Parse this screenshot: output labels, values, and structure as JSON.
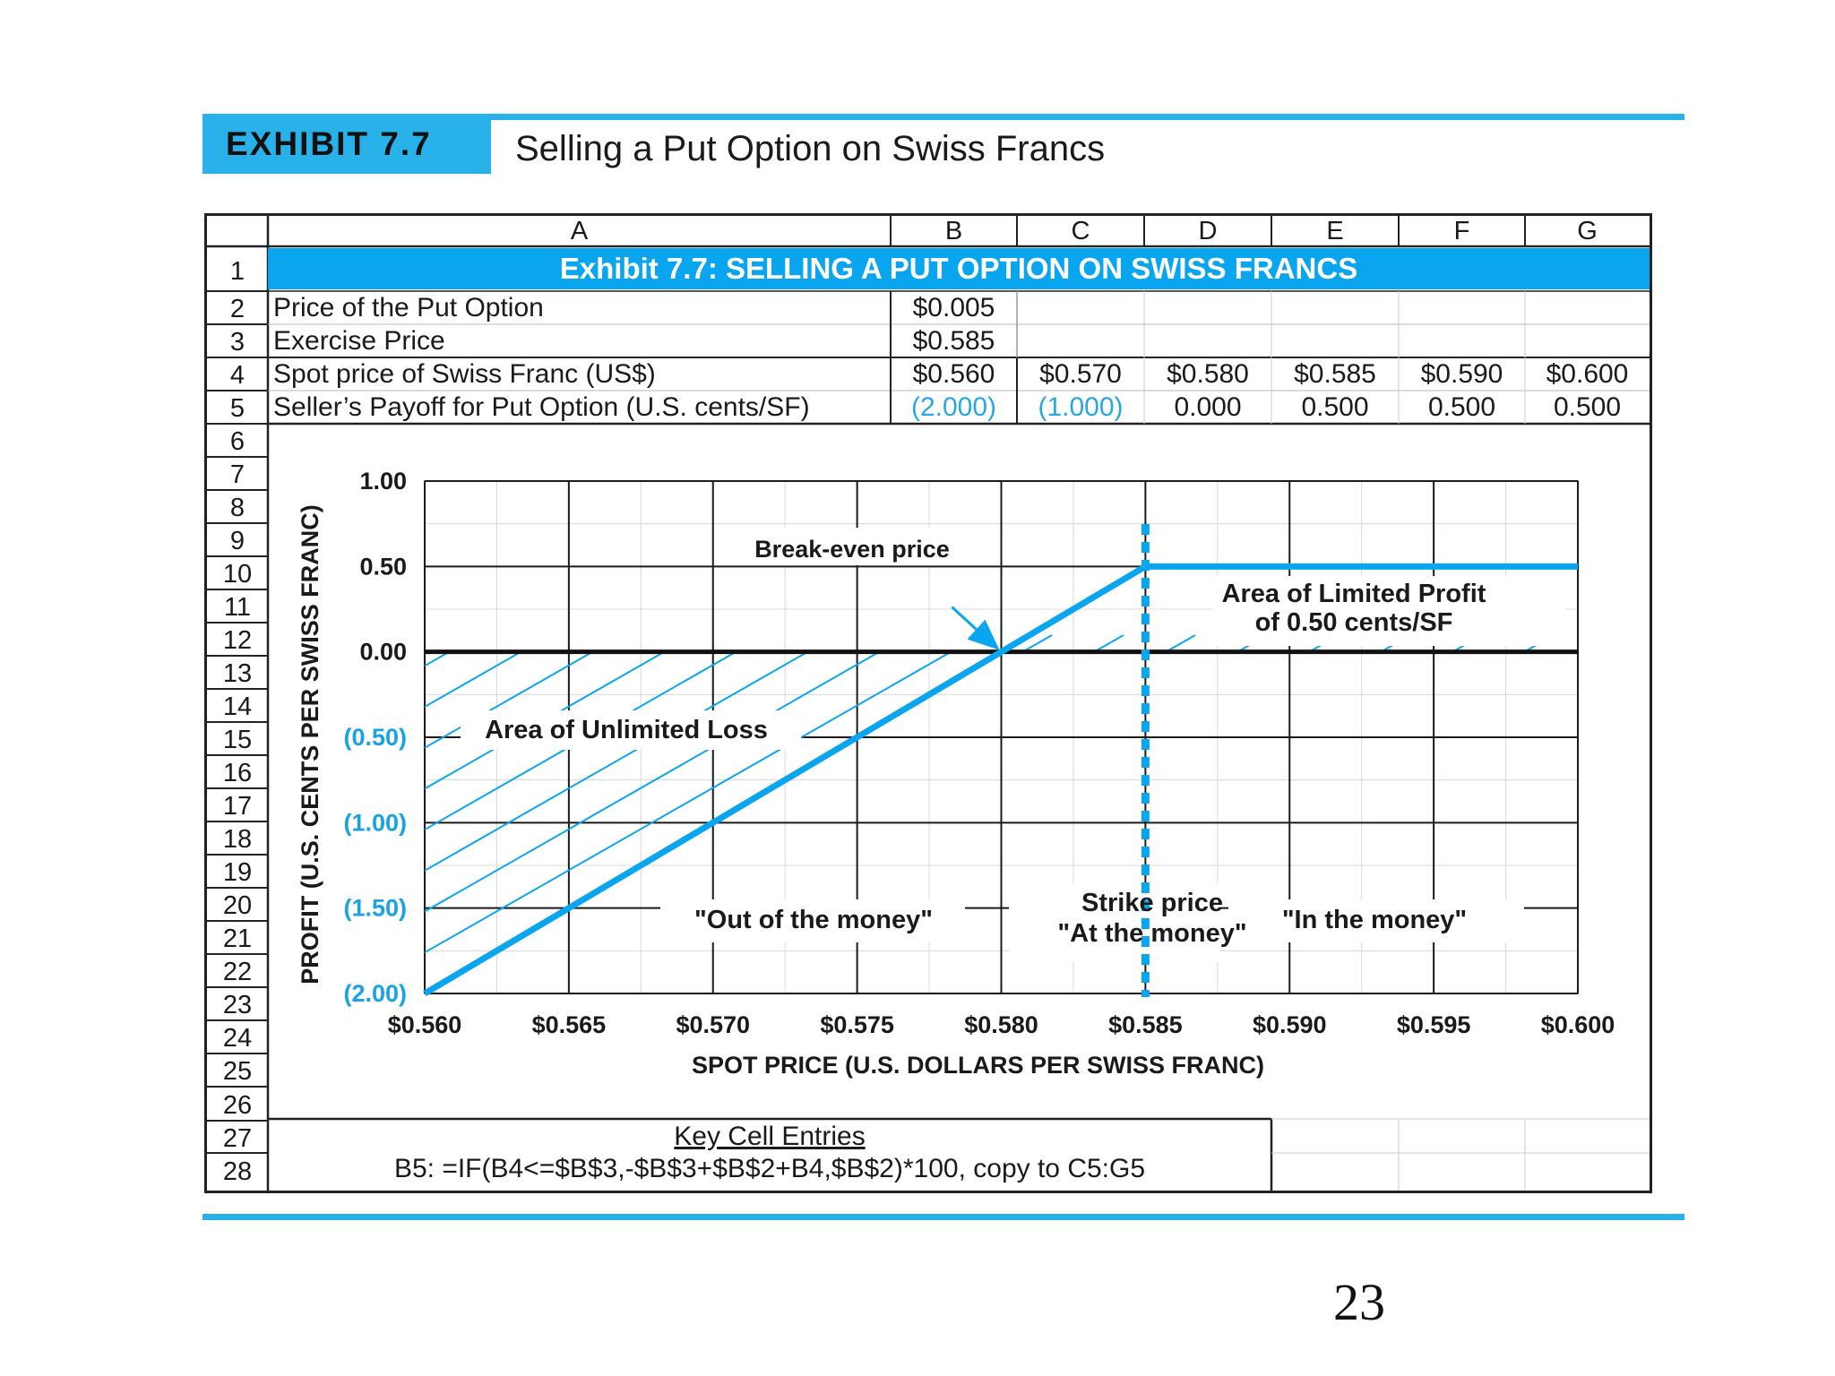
{
  "exhibit": {
    "badge": "EXHIBIT 7.7",
    "title": "Selling a Put Option on Swiss Francs"
  },
  "page_number": "23",
  "spreadsheet": {
    "columns": [
      "A",
      "B",
      "C",
      "D",
      "E",
      "F",
      "G"
    ],
    "rows": [
      "1",
      "2",
      "3",
      "4",
      "5",
      "6",
      "7",
      "8",
      "9",
      "10",
      "11",
      "12",
      "13",
      "14",
      "15",
      "16",
      "17",
      "18",
      "19",
      "20",
      "21",
      "22",
      "23",
      "24",
      "25",
      "26",
      "27",
      "28"
    ],
    "banner": "Exhibit 7.7: SELLING A PUT OPTION ON SWISS FRANCS",
    "price_label": "Price of the Put Option",
    "price_value": "$0.005",
    "exercise_label": "Exercise Price",
    "exercise_value": "$0.585",
    "spot_label": "Spot price of Swiss Franc (US$)",
    "spot_values": [
      "$0.560",
      "$0.570",
      "$0.580",
      "$0.585",
      "$0.590",
      "$0.600"
    ],
    "payoff_label": "Seller’s Payoff for Put Option (U.S. cents/SF)",
    "payoff_values": [
      "(2.000)",
      "(1.000)",
      "0.000",
      "0.500",
      "0.500",
      "0.500"
    ],
    "key_title": "Key Cell Entries",
    "key_formula": "B5:  =IF(B4<=$B$3,-$B$3+$B$2+B4,$B$2)*100, copy to C5:G5"
  },
  "chart_data": {
    "type": "line",
    "title": "",
    "xlabel": "SPOT PRICE (U.S. DOLLARS PER SWISS FRANC)",
    "ylabel": "PROFIT (U.S. CENTS PER SWISS FRANC)",
    "x_tick_labels": [
      "$0.560",
      "$0.565",
      "$0.570",
      "$0.575",
      "$0.580",
      "$0.585",
      "$0.590",
      "$0.595",
      "$0.600"
    ],
    "y_tick_labels": [
      "1.00",
      "0.50",
      "0.00",
      "(0.50)",
      "(1.00)",
      "(1.50)",
      "(2.00)"
    ],
    "y_tick_values": [
      1.0,
      0.5,
      0.0,
      -0.5,
      -1.0,
      -1.5,
      -2.0
    ],
    "xlim": [
      0.56,
      0.6
    ],
    "ylim": [
      -2.0,
      1.0
    ],
    "grid": true,
    "series": [
      {
        "name": "Seller's Payoff for Put Option",
        "x": [
          0.56,
          0.585,
          0.6
        ],
        "y": [
          -2.0,
          0.5,
          0.5
        ]
      }
    ],
    "strike_price": 0.585,
    "breakeven_price": 0.58,
    "annotations": {
      "breakeven": "Break-even price",
      "limited_profit_1": "Area of Limited Profit",
      "limited_profit_2": "of 0.50 cents/SF",
      "unlimited_loss": "Area of Unlimited Loss",
      "out_of_money": "\"Out of the money\"",
      "strike_1": "Strike price",
      "strike_2": "\"At the money\"",
      "in_money": "\"In the money\""
    }
  },
  "colors": {
    "accent": "#29b2ea",
    "banner": "#0aa5ef",
    "line": "#0aa5ef",
    "negative_text": "#29a8e0"
  }
}
